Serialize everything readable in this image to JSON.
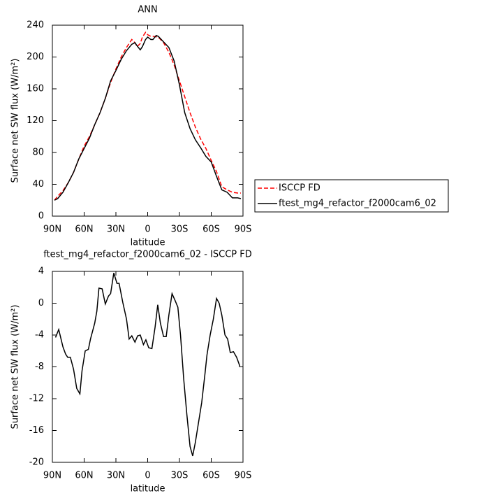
{
  "chart_data": [
    {
      "type": "line",
      "title": "ANN",
      "xlabel": "latitude",
      "ylabel": "Surface net SW flux (W/m²)",
      "xlim": [
        90,
        -90
      ],
      "ylim": [
        0,
        240
      ],
      "xticks": [
        {
          "value": 90,
          "label": "90N"
        },
        {
          "value": 60,
          "label": "60N"
        },
        {
          "value": 30,
          "label": "30N"
        },
        0,
        {
          "value": -30,
          "label": "30S"
        },
        {
          "value": -60,
          "label": "60S"
        },
        {
          "value": -90,
          "label": "90S"
        }
      ],
      "yticks": [
        0,
        40,
        80,
        120,
        160,
        200,
        240
      ],
      "series": [
        {
          "name": "ISCCP FD",
          "color": "#ff0000",
          "dash": true,
          "x": [
            88,
            85,
            80,
            75,
            70,
            65,
            60,
            55,
            50,
            45,
            40,
            35,
            30,
            25,
            20,
            15,
            12,
            10,
            7,
            5,
            2,
            0,
            -3,
            -5,
            -10,
            -15,
            -20,
            -25,
            -30,
            -35,
            -40,
            -45,
            -50,
            -55,
            -60,
            -65,
            -70,
            -75,
            -80,
            -85,
            -88
          ],
          "values": [
            20,
            25,
            32,
            42,
            55,
            72,
            88,
            100,
            115,
            130,
            148,
            168,
            185,
            200,
            212,
            222,
            218,
            213,
            217,
            225,
            231,
            228,
            226,
            226,
            225,
            218,
            206,
            190,
            170,
            150,
            130,
            112,
            97,
            85,
            70,
            56,
            37,
            33,
            30,
            29,
            29
          ]
        },
        {
          "name": "ftest_mg4_refactor_f2000cam6_02",
          "color": "#000000",
          "dash": false,
          "x": [
            88,
            85,
            80,
            75,
            70,
            65,
            60,
            55,
            50,
            45,
            40,
            35,
            30,
            25,
            20,
            15,
            12,
            10,
            7,
            5,
            2,
            0,
            -3,
            -5,
            -8,
            -10,
            -15,
            -20,
            -25,
            -30,
            -35,
            -40,
            -45,
            -50,
            -55,
            -60,
            -65,
            -70,
            -75,
            -80,
            -85,
            -88
          ],
          "values": [
            20,
            22,
            30,
            42,
            55,
            72,
            85,
            98,
            115,
            130,
            148,
            170,
            183,
            197,
            208,
            216,
            218,
            214,
            209,
            213,
            222,
            225,
            222,
            222,
            227,
            226,
            219,
            212,
            195,
            165,
            130,
            110,
            96,
            86,
            75,
            68,
            50,
            33,
            30,
            23,
            23,
            22
          ]
        }
      ]
    },
    {
      "type": "line",
      "title": "ftest_mg4_refactor_f2000cam6_02 - ISCCP FD",
      "xlabel": "latitude",
      "ylabel": "Surface net SW flux (W/m²)",
      "xlim": [
        90,
        -90
      ],
      "ylim": [
        -20,
        4
      ],
      "xticks": [
        {
          "value": 90,
          "label": "90N"
        },
        {
          "value": 60,
          "label": "60N"
        },
        {
          "value": 30,
          "label": "30N"
        },
        0,
        {
          "value": -30,
          "label": "30S"
        },
        {
          "value": -60,
          "label": "60S"
        },
        {
          "value": -90,
          "label": "90S"
        }
      ],
      "yticks": [
        -20,
        -16,
        -12,
        -8,
        -4,
        0,
        4
      ],
      "series": [
        {
          "color": "#000000",
          "dash": false,
          "x": [
            87,
            84,
            80,
            77.5,
            75.5,
            73,
            70,
            67,
            64,
            62,
            59,
            56,
            54,
            50,
            48,
            46,
            43,
            40,
            37,
            35,
            32,
            29,
            27,
            23.5,
            20,
            17.5,
            15,
            12,
            9.5,
            7,
            4,
            1.7,
            -1,
            -4,
            -7,
            -9.5,
            -12,
            -15,
            -17.5,
            -20,
            -23,
            -26,
            -28.5,
            -31,
            -34,
            -37,
            -40,
            -42.5,
            -45,
            -48,
            -51,
            -54,
            -56,
            -59,
            -62,
            -65,
            -67.5,
            -70,
            -73,
            -75.5,
            -78,
            -81,
            -84,
            -87
          ],
          "values": [
            -4.3,
            -3.3,
            -5.5,
            -6.4,
            -6.8,
            -6.8,
            -8.3,
            -10.7,
            -11.4,
            -8.5,
            -6,
            -5.8,
            -4.5,
            -2.5,
            -1,
            1.9,
            1.8,
            -0.1,
            0.9,
            1.2,
            3.8,
            2.5,
            2.5,
            0.1,
            -2,
            -4.5,
            -4.1,
            -4.9,
            -4.1,
            -4,
            -5.2,
            -4.6,
            -5.6,
            -5.7,
            -3,
            -0.2,
            -2.5,
            -4.2,
            -4.2,
            -1.5,
            1.2,
            0.3,
            -0.5,
            -4,
            -9.5,
            -14,
            -18,
            -19.2,
            -17.5,
            -15,
            -12.5,
            -9,
            -6.5,
            -4,
            -2,
            0.6,
            0,
            -1.5,
            -4,
            -4.5,
            -6.2,
            -6.1,
            -6.8,
            -7.9
          ]
        }
      ]
    }
  ]
}
